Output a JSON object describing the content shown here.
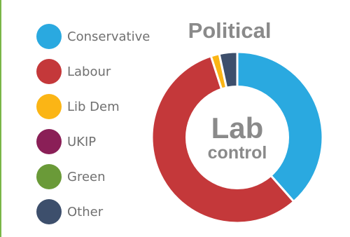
{
  "chart_data": {
    "type": "pie",
    "title": "Political",
    "center_label": {
      "line1": "Lab",
      "line2": "control"
    },
    "categories": [
      "Conservative",
      "Labour",
      "Lib Dem",
      "UKIP",
      "Green",
      "Other"
    ],
    "values": [
      38.5,
      56.5,
      1.6,
      0,
      0,
      3.4
    ],
    "colors": [
      "#2aa9e0",
      "#c4383a",
      "#fbb515",
      "#8a1f57",
      "#6a9a38",
      "#3d4f6c"
    ],
    "donut": true,
    "legend_position": "left"
  }
}
